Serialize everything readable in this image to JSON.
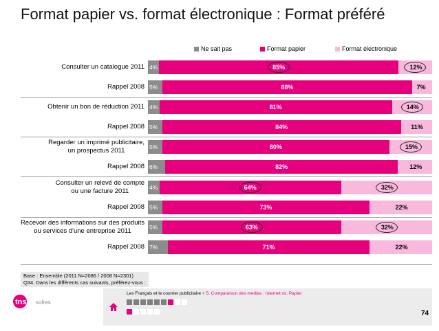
{
  "title": "Format papier vs. format électronique : Format préféré",
  "legend": [
    {
      "label": "Ne sait pas",
      "color": "#8c8c8c"
    },
    {
      "label": "Format papier",
      "color": "#e6007e"
    },
    {
      "label": "Format électronique",
      "color": "#f9b9dc"
    }
  ],
  "chart_data": {
    "type": "bar",
    "orientation": "horizontal-stacked-100",
    "series_names": [
      "Ne sait pas",
      "Format papier",
      "Format électronique"
    ],
    "rows": [
      {
        "label": "Consulter un catalogue 2011",
        "values": [
          4,
          85,
          12
        ],
        "labels": [
          "4%",
          "85%",
          "12%"
        ],
        "circled": [
          false,
          true,
          true
        ]
      },
      {
        "label": "Rappel 2008",
        "values": [
          5,
          88,
          7
        ],
        "labels": [
          "5%",
          "88%",
          "7%"
        ],
        "circled": [
          false,
          false,
          false
        ]
      },
      {
        "label": "Obtenir un bon de réduction 2011",
        "values": [
          4,
          81,
          14
        ],
        "labels": [
          "4%",
          "81%",
          "14%"
        ],
        "circled": [
          false,
          false,
          true
        ]
      },
      {
        "label": "Rappel 2008",
        "values": [
          5,
          84,
          11
        ],
        "labels": [
          "5%",
          "84%",
          "11%"
        ],
        "circled": [
          false,
          false,
          false
        ]
      },
      {
        "label": "Regarder un imprimé publicitaire,\nun prospectus 2011",
        "values": [
          5,
          80,
          15
        ],
        "labels": [
          "5%",
          "80%",
          "15%"
        ],
        "circled": [
          false,
          false,
          true
        ]
      },
      {
        "label": "Rappel 2008",
        "values": [
          6,
          82,
          12
        ],
        "labels": [
          "6%",
          "82%",
          "12%"
        ],
        "circled": [
          false,
          false,
          false
        ]
      },
      {
        "label": "Consulter un relevé de compte\nou une facture 2011",
        "values": [
          4,
          64,
          32
        ],
        "labels": [
          "4%",
          "64%",
          "32%"
        ],
        "circled": [
          false,
          true,
          true
        ]
      },
      {
        "label": "Rappel 2008",
        "values": [
          5,
          73,
          22
        ],
        "labels": [
          "5%",
          "73%",
          "22%"
        ],
        "circled": [
          false,
          false,
          false
        ]
      },
      {
        "label": "Recevoir des informations sur des produits\nou services d'une entreprise 2011",
        "values": [
          5,
          63,
          32
        ],
        "labels": [
          "5%",
          "63%",
          "32%"
        ],
        "circled": [
          false,
          true,
          true
        ]
      },
      {
        "label": "Rappel 2008",
        "values": [
          7,
          71,
          22
        ],
        "labels": [
          "7%",
          "71%",
          "22%"
        ],
        "circled": [
          false,
          false,
          false
        ]
      }
    ]
  },
  "notes": {
    "line1": "Base : Ensemble (2011 N=2086 / 2008 N=2301)",
    "line2": "Q34. Dans les différents cas suivants, préférez-vous :"
  },
  "footer": {
    "breadcrumb": "Les Français et le courrier publicitaire",
    "breadcrumb_highlight": "> 5. Comparaison des medias : Internet vs. Papier",
    "page_number": "74"
  },
  "logo": {
    "text_main": "tns",
    "text_sub": "sofres"
  }
}
